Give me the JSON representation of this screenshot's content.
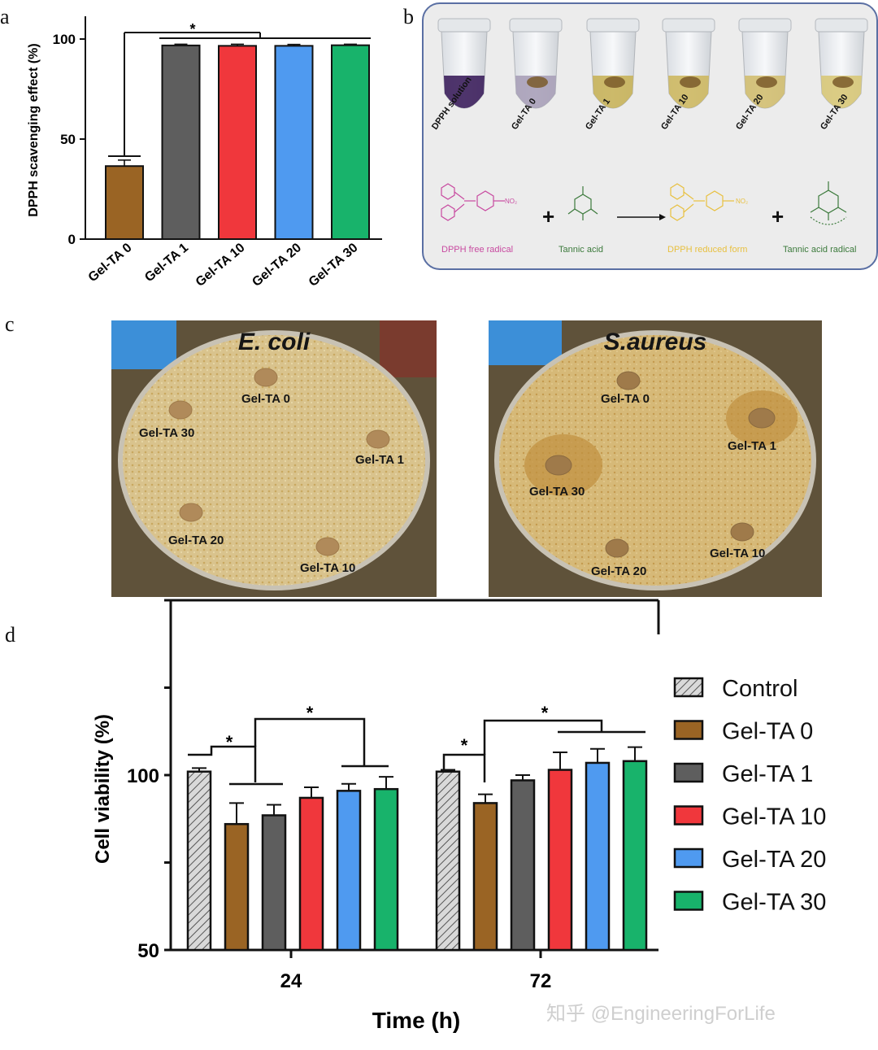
{
  "panel_letters": {
    "a": "a",
    "b": "b",
    "c": "c",
    "d": "d"
  },
  "colors": {
    "control": "#c8c8c8",
    "gel_ta_0": "#9a6424",
    "gel_ta_1": "#5e5e5e",
    "gel_ta_10": "#f0373c",
    "gel_ta_20": "#4f9af0",
    "gel_ta_30": "#18b36b"
  },
  "chart_data": [
    {
      "type": "bar",
      "panel": "a",
      "title": "",
      "categories": [
        "Gel-TA 0",
        "Gel-TA 1",
        "Gel-TA 10",
        "Gel-TA 20",
        "Gel-TA 30"
      ],
      "values": [
        36.5,
        96.8,
        96.6,
        96.6,
        96.9
      ],
      "errors": [
        3.0,
        0.6,
        0.8,
        0.7,
        0.5
      ],
      "ylabel": "DPPH scavenging effect (%)",
      "xlabel": "",
      "ylim": [
        0,
        100
      ],
      "yticks": [
        "0",
        "50",
        "100"
      ],
      "significance": "*"
    },
    {
      "type": "bar",
      "panel": "d",
      "title": "",
      "categories": [
        "24",
        "72"
      ],
      "series": [
        {
          "name": "Control",
          "values": [
            101,
            101
          ],
          "errors": [
            1.0,
            0.5
          ]
        },
        {
          "name": "Gel-TA 0",
          "values": [
            86,
            92
          ],
          "errors": [
            6.0,
            2.5
          ]
        },
        {
          "name": "Gel-TA 1",
          "values": [
            88.5,
            98.5
          ],
          "errors": [
            3.0,
            1.5
          ]
        },
        {
          "name": "Gel-TA 10",
          "values": [
            93.5,
            101.5
          ],
          "errors": [
            3.0,
            5.0
          ]
        },
        {
          "name": "Gel-TA 20",
          "values": [
            95.5,
            103.5
          ],
          "errors": [
            2.0,
            4.0
          ]
        },
        {
          "name": "Gel-TA 30",
          "values": [
            96,
            104
          ],
          "errors": [
            3.5,
            4.0
          ]
        }
      ],
      "xlabel": "Time (h)",
      "ylabel": "Cell viability (%)",
      "ylim": [
        50,
        150
      ],
      "yticks": [
        "50",
        "100"
      ],
      "legend_position": "right",
      "significance": [
        "*",
        "*",
        "*",
        "*"
      ]
    }
  ],
  "panel_b": {
    "tubes": [
      "DPPH solution",
      "Gel-TA 0",
      "Gel-TA 1",
      "Gel-TA 10",
      "Gel-TA 20",
      "Gel-TA 30"
    ],
    "reaction": {
      "reactant_1": "DPPH free radical",
      "reactant_2": "Tannic acid",
      "product_1": "DPPH reduced form",
      "product_2": "Tannic acid radical",
      "plus": "+"
    }
  },
  "panel_c": {
    "plates": [
      {
        "title": "E. coli",
        "discs": [
          "Gel-TA 0",
          "Gel-TA 30",
          "Gel-TA 1",
          "Gel-TA 20",
          "Gel-TA 10"
        ]
      },
      {
        "title": "S.aureus",
        "discs": [
          "Gel-TA 0",
          "Gel-TA 1",
          "Gel-TA 30",
          "Gel-TA 20",
          "Gel-TA 10"
        ]
      }
    ]
  },
  "watermark": "知乎 @EngineeringForLife"
}
